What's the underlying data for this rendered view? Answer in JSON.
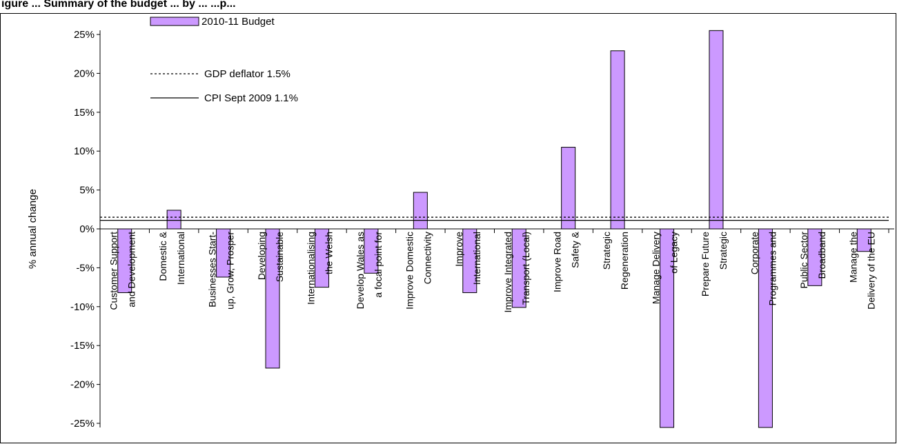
{
  "figure_title": "igure ... Summary of the budget ... by ... ...p...",
  "chart_data": {
    "type": "bar",
    "ylabel": "% annual change",
    "xlabel": "",
    "ylim": [
      -25,
      25
    ],
    "y_tick_labels": [
      "25%",
      "20%",
      "15%",
      "10%",
      "5%",
      "0%",
      "-5%",
      "-10%",
      "-15%",
      "-20%",
      "-25%"
    ],
    "y_ticks": [
      25,
      20,
      15,
      10,
      5,
      0,
      -5,
      -10,
      -15,
      -20,
      -25
    ],
    "categories": [
      [
        "Customer Support",
        "and Development"
      ],
      [
        "Domestic &",
        "International"
      ],
      [
        "Businesses Start-",
        "up, Grow, Prosper"
      ],
      [
        "Developing",
        "Sustainable"
      ],
      [
        "Internationalising",
        "the Welsh"
      ],
      [
        "Develop Wales as",
        "a focal point for"
      ],
      [
        "Improve Domestic",
        "Connectivity"
      ],
      [
        "Improve",
        "International"
      ],
      [
        "Improve Integrated",
        "Transport (Local)"
      ],
      [
        "Improve Road",
        "Safety &"
      ],
      [
        "Strategic",
        "Regeneration"
      ],
      [
        "Manage Delivery",
        "of Legacy"
      ],
      [
        "Prepare Future",
        "Strategic"
      ],
      [
        "Corporate",
        "Programmes and"
      ],
      [
        "Public Sector",
        "Broadband"
      ],
      [
        "Manage the",
        "Delivery of the EU"
      ]
    ],
    "series": [
      {
        "name": "2010-11 Budget",
        "color": "#cc99ff",
        "values": [
          -8.2,
          2.4,
          -6.2,
          -17.9,
          -7.5,
          -5.7,
          4.7,
          -8.2,
          -10.1,
          10.5,
          22.9,
          -27,
          25.5,
          -27,
          -7.3,
          -2.9
        ]
      }
    ],
    "reference_lines": [
      {
        "name": "GDP deflator 1.5%",
        "value": 1.5,
        "style": "dotted"
      },
      {
        "name": "CPI Sept 2009 1.1%",
        "value": 1.1,
        "style": "solid"
      }
    ],
    "legend": [
      {
        "label": "2010-11 Budget",
        "kind": "bar"
      },
      {
        "label": "GDP deflator 1.5%",
        "kind": "dotted-line"
      },
      {
        "label": "CPI Sept 2009 1.1%",
        "kind": "solid-line"
      }
    ],
    "legend_position": "top-left",
    "grid": false
  }
}
